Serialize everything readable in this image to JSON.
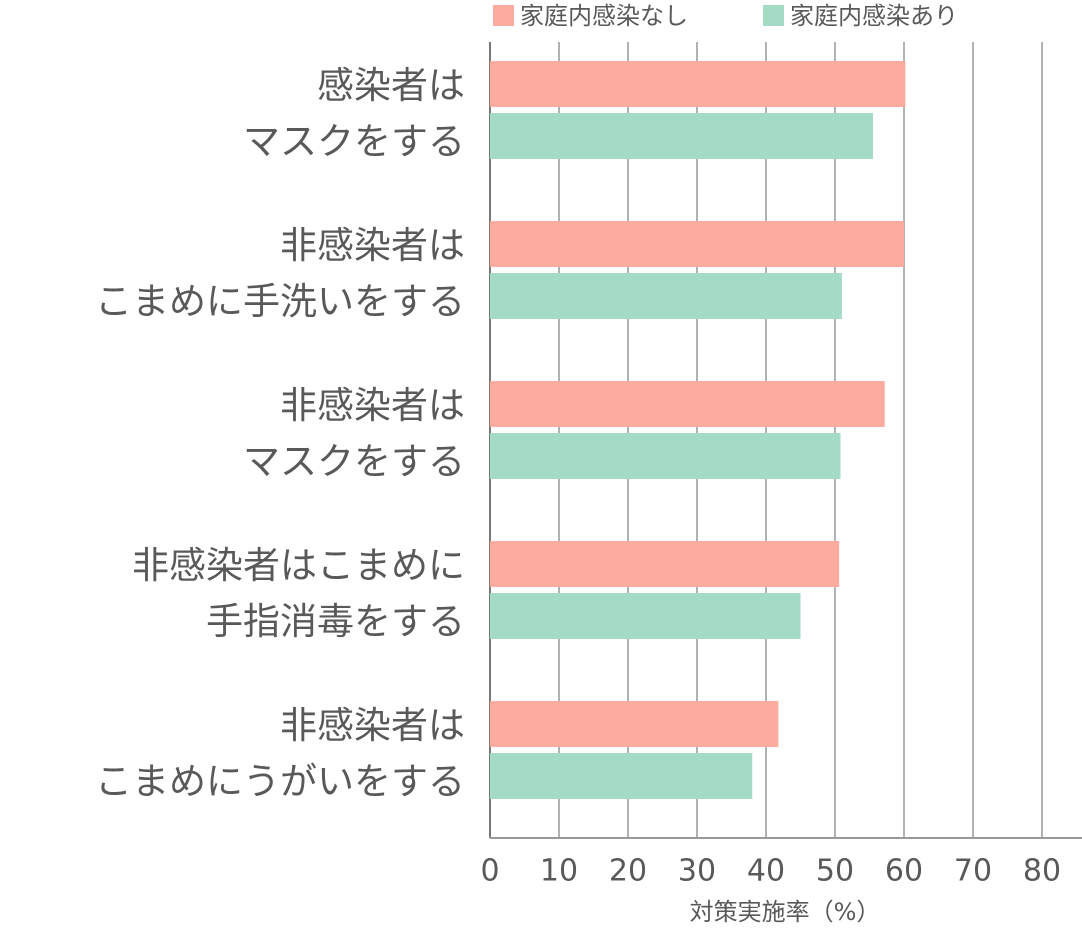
{
  "chart_data": {
    "type": "bar",
    "orientation": "horizontal",
    "categories": [
      [
        "感染者は",
        "マスクをする"
      ],
      [
        "非感染者は",
        "こまめに手洗いをする"
      ],
      [
        "非感染者は",
        "マスクをする"
      ],
      [
        "非感染者はこまめに",
        "手指消毒をする"
      ],
      [
        "非感染者は",
        "こまめにうがいをする"
      ]
    ],
    "series": [
      {
        "name": "家庭内感染なし",
        "color": "#fdab9f",
        "values": [
          60.2,
          60.0,
          57.2,
          50.6,
          41.8
        ]
      },
      {
        "name": "家庭内感染あり",
        "color": "#a3dbc5",
        "values": [
          55.5,
          51.0,
          50.8,
          45.0,
          38.0
        ]
      }
    ],
    "xlabel": "対策実施率（%）",
    "xlim": [
      0,
      85
    ],
    "xticks": [
      0,
      10,
      20,
      30,
      40,
      50,
      60,
      70,
      80
    ],
    "grid": true
  }
}
